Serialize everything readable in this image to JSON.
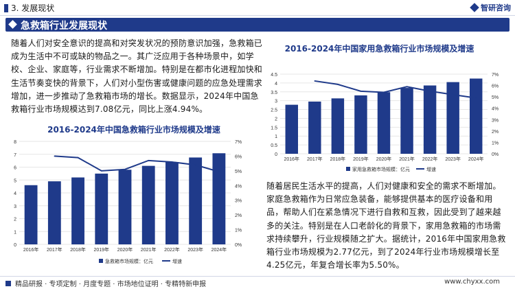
{
  "header": {
    "section": "3. 发展现状",
    "brand": "智研咨询"
  },
  "banner": {
    "title": "急救箱行业发展现状"
  },
  "text": {
    "para1": "随着人们对安全意识的提高和对突发状况的预防意识加强，急救箱已成为生活中不可或缺的物品之一。其广泛应用于各种场景中，如学校、企业、家庭等，行业需求不断增加。特别是在都市化进程加快和生活节奏变快的背景下，人们对小型伤害或健康问题的应急处理需求增加，进一步推动了急救箱市场的增长。数据显示，2024年中国急救箱行业市场规模达到7.08亿元，同比上涨4.94%。",
    "para2": "随着居民生活水平的提高，人们对健康和安全的需求不断增加。家庭急救箱作为日常应急装备，能够提供基本的医疗设备和用品，帮助人们在紧急情况下进行自救和互救，因此受到了越来越多的关注。特别是在人口老龄化的背景下，家用急救箱的市场需求持续攀升，行业规模随之扩大。据统计，2016年中国家用急救箱行业市场规模为2.77亿元，到了2024年行业市场规模增长至4.25亿元，年复合增长率为5.50%。"
  },
  "footer": {
    "left": "精品研报 · 专项定制 · 月度专题 · 市场地位证明 · 专精特新申报",
    "right": "www.chyxx.com"
  },
  "chart_data": [
    {
      "type": "bar",
      "title": "2016-2024年中国家用急救箱行业市场规模及增速",
      "categories": [
        "2016年",
        "2017年",
        "2018年",
        "2019年",
        "2020年",
        "2021年",
        "2022年",
        "2023年",
        "2024年"
      ],
      "series": [
        {
          "name": "家用急救箱市场规模：亿元",
          "type": "bar",
          "values": [
            2.77,
            2.95,
            3.13,
            3.3,
            3.48,
            3.72,
            3.86,
            4.05,
            4.25
          ],
          "color": "#1f3a8a"
        },
        {
          "name": "增速",
          "type": "line",
          "values": [
            null,
            6.4,
            6.1,
            5.5,
            5.4,
            5.9,
            5.5,
            5.2,
            4.9
          ],
          "axis": "right",
          "color": "#1f3a8a"
        }
      ],
      "y_ticks": [
        "0",
        "0.5",
        "1",
        "1.5",
        "2",
        "2.5",
        "3",
        "3.5",
        "4",
        "4.5"
      ],
      "y2_ticks": [
        "0%",
        "1%",
        "2%",
        "3%",
        "4%",
        "5%",
        "6%",
        "7%"
      ],
      "ylim": [
        0,
        4.5
      ],
      "y2lim": [
        0,
        7
      ],
      "legend": "bottom"
    },
    {
      "type": "bar",
      "title": "2016-2024年中国急救箱行业市场规模及增速",
      "categories": [
        "2016年",
        "2017年",
        "2018年",
        "2019年",
        "2020年",
        "2021年",
        "2022年",
        "2023年",
        "2024年"
      ],
      "series": [
        {
          "name": "急救箱市场规模：亿元",
          "type": "bar",
          "values": [
            4.6,
            4.9,
            5.2,
            5.5,
            5.8,
            6.1,
            6.4,
            6.75,
            7.08
          ],
          "color": "#1f3a8a"
        },
        {
          "name": "增速",
          "type": "line",
          "values": [
            null,
            6.0,
            5.9,
            5.0,
            5.1,
            5.7,
            5.6,
            5.4,
            4.94
          ],
          "axis": "right",
          "color": "#1f3a8a"
        }
      ],
      "y_ticks": [
        "0",
        "1",
        "2",
        "3",
        "4",
        "5",
        "6",
        "7",
        "8"
      ],
      "y2_ticks": [
        "0%",
        "1%",
        "2%",
        "3%",
        "4%",
        "5%",
        "6%",
        "7%"
      ],
      "ylim": [
        0,
        8
      ],
      "y2lim": [
        0,
        7
      ],
      "legend": "bottom"
    }
  ]
}
